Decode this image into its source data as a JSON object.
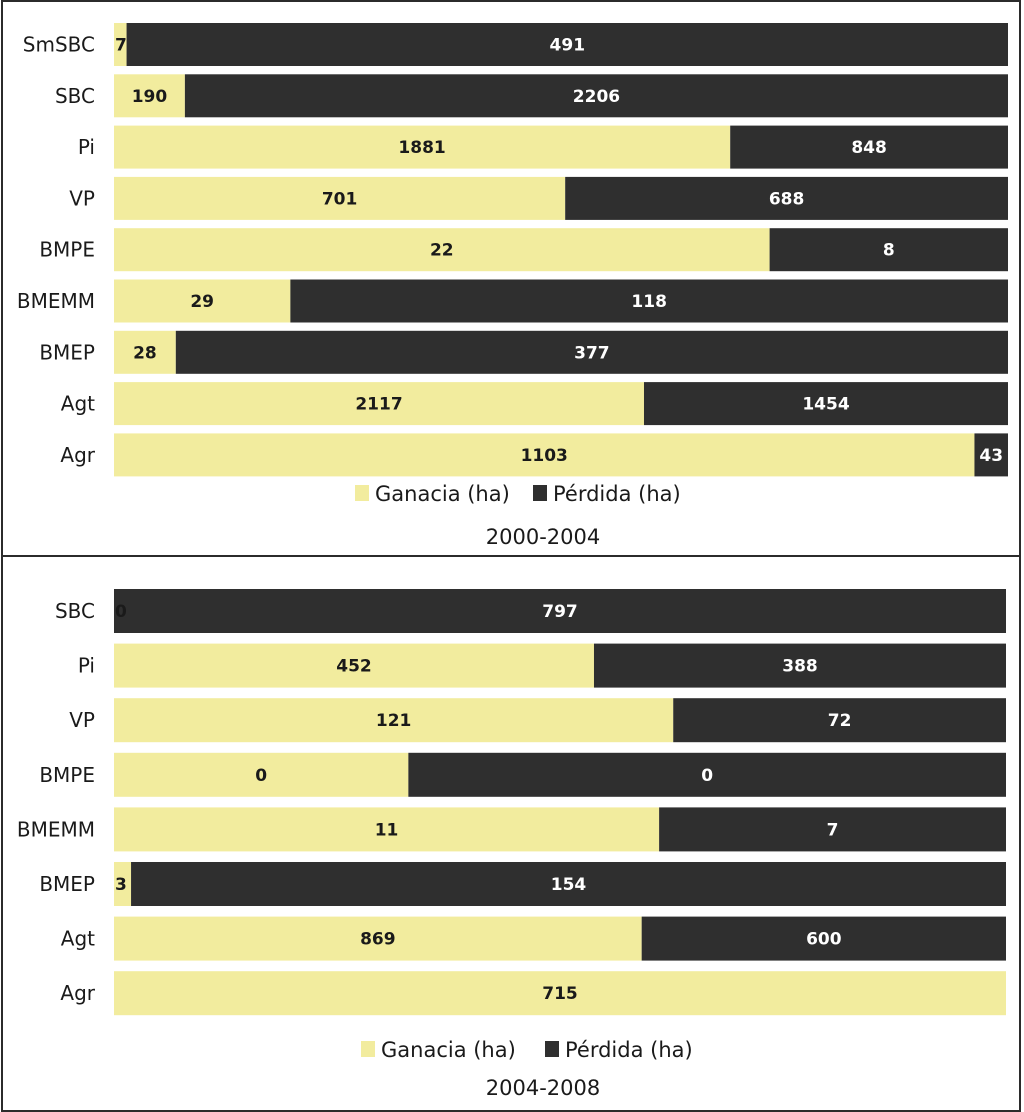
{
  "colors": {
    "gain": "#f2ec9e",
    "loss": "#2f2f2f"
  },
  "chart_data": [
    {
      "type": "bar",
      "orientation": "horizontal",
      "stacked": "percent",
      "title": "2000-2004",
      "categories": [
        "SmSBC",
        "SBC",
        "Pi",
        "VP",
        "BMPE",
        "BMEMM",
        "BMEP",
        "Agt",
        "Agr"
      ],
      "series": [
        {
          "name": "Ganacia (ha)",
          "values": [
            7,
            190,
            1881,
            701,
            22,
            29,
            28,
            2117,
            1103
          ]
        },
        {
          "name": "Pérdida (ha)",
          "values": [
            491,
            2206,
            848,
            688,
            8,
            118,
            377,
            1454,
            43
          ]
        }
      ],
      "legend": "bottom",
      "grid": false
    },
    {
      "type": "bar",
      "orientation": "horizontal",
      "stacked": "percent",
      "title": "2004-2008",
      "categories": [
        "SBC",
        "Pi",
        "VP",
        "BMPE",
        "BMEMM",
        "BMEP",
        "Agt",
        "Agr"
      ],
      "series": [
        {
          "name": "Ganacia (ha)",
          "values": [
            0,
            452,
            121,
            0,
            11,
            3,
            869,
            715
          ]
        },
        {
          "name": "Pérdida (ha)",
          "values": [
            797,
            388,
            72,
            0,
            7,
            154,
            600,
            0
          ]
        }
      ],
      "legend": "bottom",
      "grid": false
    }
  ]
}
